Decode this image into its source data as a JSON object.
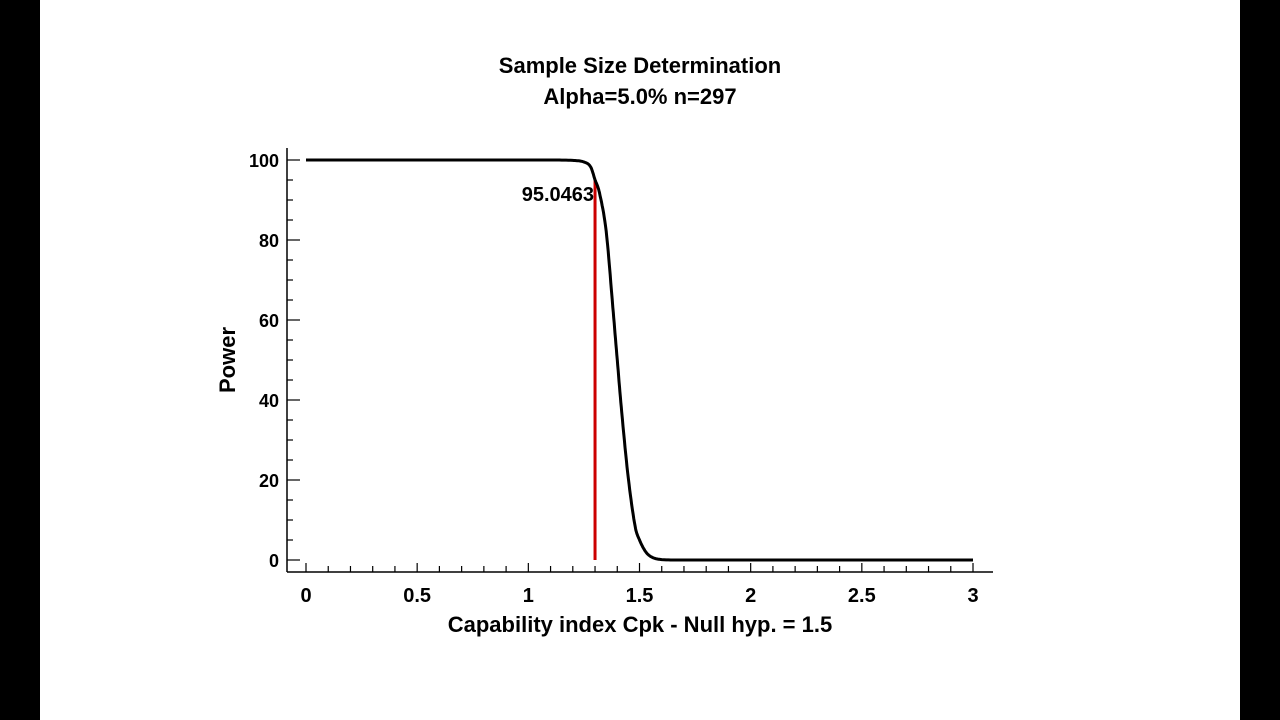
{
  "chart_data": {
    "type": "line",
    "title": "Sample Size Determination",
    "subtitle": "Alpha=5.0% n=297",
    "xlabel": "Capability index Cpk - Null hyp. = 1.5",
    "ylabel": "Power",
    "xlim": [
      0,
      3
    ],
    "ylim": [
      0,
      100
    ],
    "xticks": [
      0,
      0.5,
      1,
      1.5,
      2,
      2.5,
      3
    ],
    "xtick_labels": [
      "0",
      "0.5",
      "1",
      "1.5",
      "2",
      "2.5",
      "3"
    ],
    "yticks": [
      0,
      20,
      40,
      60,
      80,
      100
    ],
    "ytick_labels": [
      "0",
      "20",
      "40",
      "60",
      "80",
      "100"
    ],
    "grid": false,
    "series": [
      {
        "color": "#000000",
        "x": [
          0,
          0.5,
          1.0,
          1.1,
          1.2,
          1.25,
          1.28,
          1.3,
          1.32,
          1.35,
          1.38,
          1.4,
          1.42,
          1.45,
          1.48,
          1.5,
          1.53,
          1.56,
          1.6,
          1.7,
          2,
          2.5,
          3
        ],
        "y": [
          100,
          100,
          100,
          100,
          99.9,
          99.5,
          98.3,
          95.0463,
          91.8,
          82.2,
          63.2,
          50.0,
          37.0,
          20.3,
          8.5,
          5.0,
          1.9,
          0.6,
          0.1,
          0,
          0,
          0,
          0
        ]
      }
    ],
    "annotations": [
      {
        "type": "vline",
        "x": 1.3,
        "y": 95.0463,
        "color": "#cc0000",
        "label": "95.0463"
      }
    ]
  }
}
